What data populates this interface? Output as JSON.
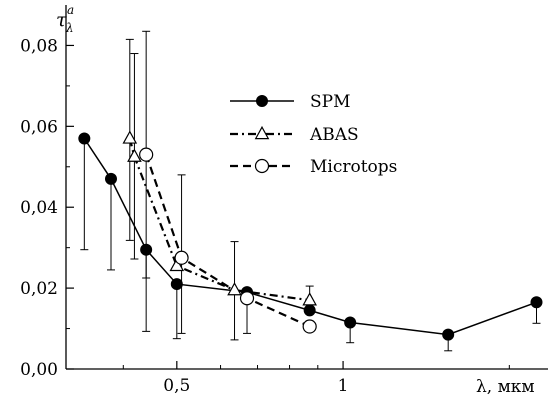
{
  "chart_data": {
    "type": "line",
    "title": "",
    "xlabel": "λ, мкм",
    "ylabel": "τ",
    "ylabel_sub": "λ",
    "ylabel_sup": "a",
    "x_scale": "log",
    "xlim": [
      0.315,
      2.35
    ],
    "ylim": [
      0,
      0.09
    ],
    "x_ticks": [
      {
        "value": 0.5,
        "label": "0,5"
      },
      {
        "value": 1,
        "label": "1"
      }
    ],
    "x_minor_ticks": [
      0.4,
      0.6,
      0.7,
      0.8,
      0.9,
      2
    ],
    "y_ticks": [
      {
        "value": 0.0,
        "label": "0,00"
      },
      {
        "value": 0.02,
        "label": "0,02"
      },
      {
        "value": 0.04,
        "label": "0,04"
      },
      {
        "value": 0.06,
        "label": "0,06"
      },
      {
        "value": 0.08,
        "label": "0,08"
      }
    ],
    "y_minor_step": 0.01,
    "grid": false,
    "legend_position": "top-center",
    "series": [
      {
        "name": "SPM",
        "line": "solid",
        "marker": "filled-circle",
        "points": [
          {
            "x": 0.34,
            "y": 0.057,
            "lo": 0.0295,
            "hi": 0.057
          },
          {
            "x": 0.38,
            "y": 0.047,
            "lo": 0.0245,
            "hi": 0.047
          },
          {
            "x": 0.44,
            "y": 0.0295,
            "lo": 0.0093,
            "hi": 0.0295
          },
          {
            "x": 0.5,
            "y": 0.021,
            "lo": 0.0075,
            "hi": 0.021
          },
          {
            "x": 0.67,
            "y": 0.019,
            "lo": 0.0088,
            "hi": 0.019
          },
          {
            "x": 0.87,
            "y": 0.0145,
            "lo": 0.0145,
            "hi": 0.0205
          },
          {
            "x": 1.03,
            "y": 0.0115,
            "lo": 0.0065,
            "hi": 0.0115
          },
          {
            "x": 1.55,
            "y": 0.0085,
            "lo": 0.0045,
            "hi": 0.0085
          },
          {
            "x": 2.24,
            "y": 0.0165,
            "lo": 0.0113,
            "hi": 0.0165
          }
        ]
      },
      {
        "name": "ABAS",
        "line": "dash-dot",
        "marker": "open-triangle",
        "points": [
          {
            "x": 0.411,
            "y": 0.057,
            "lo": 0.0318,
            "hi": 0.0815
          },
          {
            "x": 0.419,
            "y": 0.0525,
            "lo": 0.0272,
            "hi": 0.078
          },
          {
            "x": 0.5,
            "y": 0.0255,
            "lo": 0.0255,
            "hi": 0.0255
          },
          {
            "x": 0.636,
            "y": 0.0195,
            "lo": 0.0072,
            "hi": 0.0315
          },
          {
            "x": 0.87,
            "y": 0.017,
            "lo": 0.017,
            "hi": 0.017
          }
        ]
      },
      {
        "name": "Microtops",
        "line": "dashed",
        "marker": "open-circle",
        "points": [
          {
            "x": 0.44,
            "y": 0.053,
            "lo": 0.0225,
            "hi": 0.0835
          },
          {
            "x": 0.51,
            "y": 0.0275,
            "lo": 0.0088,
            "hi": 0.048
          },
          {
            "x": 0.67,
            "y": 0.0175,
            "lo": 0.0175,
            "hi": 0.0175
          },
          {
            "x": 0.87,
            "y": 0.0105,
            "lo": 0.0105,
            "hi": 0.0105
          }
        ]
      }
    ]
  }
}
